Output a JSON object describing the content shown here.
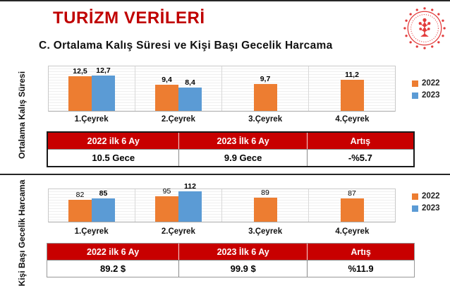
{
  "page": {
    "title": "TURİZM VERİLERİ",
    "subtitle": "C. Ortalama Kalış Süresi ve Kişi Başı Gecelik Harcama"
  },
  "logo": {
    "name": "turkiye-kultur-turizm-bakanligi-emblem",
    "color": "#E23B3B"
  },
  "colors": {
    "title_red": "#C00000",
    "table_header_red": "#C80000",
    "series_2022": "#ED7D31",
    "series_2023": "#5B9BD5"
  },
  "sections": [
    {
      "axis_label": "Ortalama Kalış Süresi",
      "chart_data": {
        "type": "bar",
        "categories": [
          "1.Çeyrek",
          "2.Çeyrek",
          "3.Çeyrek",
          "4.Çeyrek"
        ],
        "series": [
          {
            "name": "2022",
            "color": "#ED7D31",
            "values": [
              12.5,
              9.4,
              9.7,
              11.2
            ],
            "labels": [
              "12,5",
              "9,4",
              "9,7",
              "11,2"
            ],
            "labels_bold": true
          },
          {
            "name": "2023",
            "color": "#5B9BD5",
            "values": [
              12.7,
              8.4,
              null,
              null
            ],
            "labels": [
              "12,7",
              "8,4",
              null,
              null
            ],
            "labels_bold": true
          }
        ],
        "ylim": [
          0,
          16
        ],
        "grid": true,
        "legend_position": "right"
      },
      "table": {
        "headers": [
          "2022 ilk 6 Ay",
          "2023 İlk 6 Ay",
          "Artış"
        ],
        "row": [
          "10.5 Gece",
          "9.9 Gece",
          "-%5.7"
        ]
      }
    },
    {
      "axis_label": "Kişi Başı Gecelik Harcama",
      "chart_data": {
        "type": "bar",
        "categories": [
          "1.Çeyrek",
          "2.Çeyrek",
          "3.Çeyrek",
          "4.Çeyrek"
        ],
        "series": [
          {
            "name": "2022",
            "color": "#ED7D31",
            "values": [
              82,
              95,
              89,
              87
            ],
            "labels": [
              "82",
              "95",
              "89",
              "87"
            ],
            "labels_bold": false
          },
          {
            "name": "2023",
            "color": "#5B9BD5",
            "values": [
              85,
              112,
              null,
              null
            ],
            "labels": [
              "85",
              "112",
              null,
              null
            ],
            "labels_bold": true
          }
        ],
        "ylim": [
          0,
          120
        ],
        "grid": true,
        "legend_position": "right"
      },
      "table": {
        "headers": [
          "2022 ilk 6 Ay",
          "2023 İlk 6 Ay",
          "Artış"
        ],
        "row": [
          "89.2 $",
          "99.9 $",
          "%11.9"
        ]
      }
    }
  ]
}
